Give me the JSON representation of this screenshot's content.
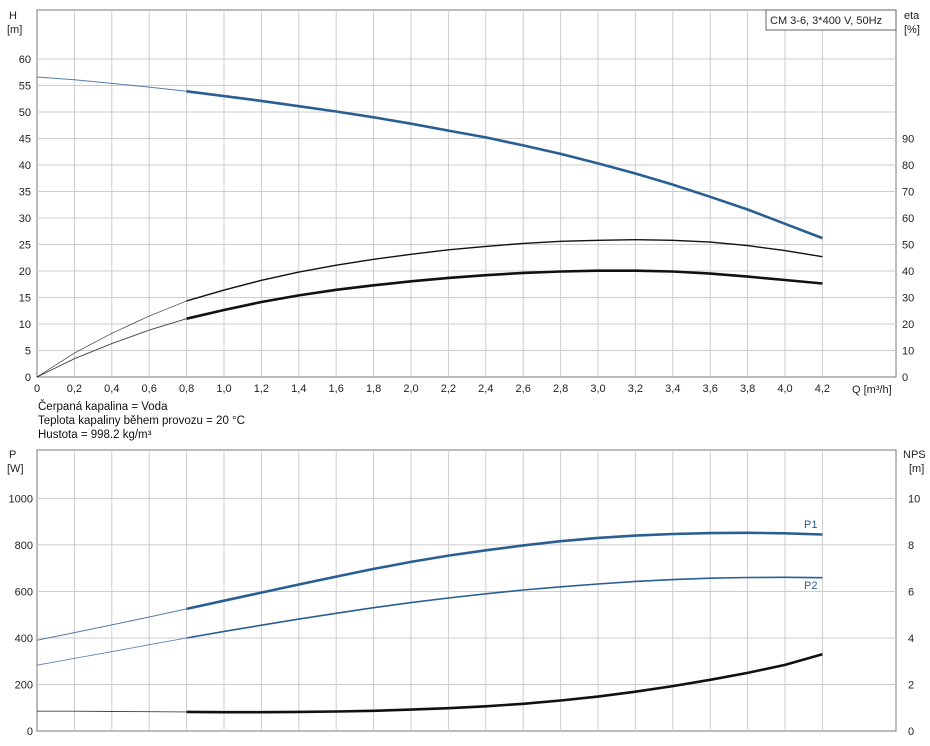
{
  "upper": {
    "title_box": "CM 3-6, 3*400 V, 50Hz",
    "left_axis": {
      "name": "H",
      "unit": "[m]"
    },
    "right_axis": {
      "name": "eta",
      "unit": "[%]"
    },
    "x_axis_label": "Q [m³/h]"
  },
  "info_lines": [
    "Čerpaná kapalina = Voda",
    "Teplota kapaliny během provozu = 20 °C",
    "Hustota = 998.2 kg/m³"
  ],
  "lower": {
    "left_axis": {
      "name": "P",
      "unit": "[W]"
    },
    "right_axis": {
      "name": "NPS",
      "unit": "[m]"
    },
    "series_labels": {
      "p1": "P1",
      "p2": "P2"
    }
  },
  "colors": {
    "blue": "#2a5f93",
    "blue_light": "#6f8fb8",
    "black": "#111111",
    "grid": "#cccccc",
    "axis": "#777777"
  },
  "chart_data": [
    {
      "type": "line",
      "title": "CM 3-6, 3*400 V, 50Hz",
      "xlabel": "Q [m³/h]",
      "ylabel": "H [m]",
      "y2label": "eta [%]",
      "xlim": [
        0,
        4.2
      ],
      "ylim": [
        0,
        60
      ],
      "y2lim": [
        0,
        90
      ],
      "x_ticks": [
        0,
        0.2,
        0.4,
        0.6,
        0.8,
        1.0,
        1.2,
        1.4,
        1.6,
        1.8,
        2.0,
        2.2,
        2.4,
        2.6,
        2.8,
        3.0,
        3.2,
        3.4,
        3.6,
        3.8,
        4.0,
        4.2
      ],
      "x_tick_labels": [
        "0",
        "0,2",
        "0,4",
        "0,6",
        "0,8",
        "1,0",
        "1,2",
        "1,4",
        "1,6",
        "1,8",
        "2,0",
        "2,2",
        "2,4",
        "2,6",
        "2,8",
        "3,0",
        "3,2",
        "3,4",
        "3,6",
        "3,8",
        "4,0",
        "4,2"
      ],
      "y_ticks": [
        0,
        5,
        10,
        15,
        20,
        25,
        30,
        35,
        40,
        45,
        50,
        55,
        60
      ],
      "y2_ticks": [
        0,
        10,
        20,
        30,
        40,
        50,
        60,
        70,
        80,
        90
      ],
      "grid": true,
      "series": [
        {
          "axis": "left",
          "style": "blue",
          "x": [
            0,
            0.2,
            0.4,
            0.6,
            0.8,
            1.0,
            1.2,
            1.4,
            1.6,
            1.8,
            2.0,
            2.2,
            2.4,
            2.6,
            2.8,
            3.0,
            3.2,
            3.4,
            3.6,
            3.8,
            4.0,
            4.2
          ],
          "y": [
            56.6,
            56.1,
            55.4,
            54.7,
            53.9,
            53.0,
            52.1,
            51.1,
            50.1,
            49.0,
            47.8,
            46.5,
            45.2,
            43.7,
            42.1,
            40.3,
            38.4,
            36.3,
            34.0,
            31.6,
            28.9,
            26.2
          ]
        },
        {
          "axis": "right",
          "style": "black-thin",
          "x": [
            0,
            0.2,
            0.4,
            0.6,
            0.8,
            1.0,
            1.2,
            1.4,
            1.6,
            1.8,
            2.0,
            2.2,
            2.4,
            2.6,
            2.8,
            3.0,
            3.2,
            3.4,
            3.6,
            3.8,
            4.0,
            4.2
          ],
          "y": [
            0,
            9.0,
            16.5,
            23.0,
            28.7,
            32.8,
            36.5,
            39.6,
            42.2,
            44.4,
            46.3,
            48.0,
            49.3,
            50.4,
            51.2,
            51.6,
            51.8,
            51.6,
            50.9,
            49.6,
            47.7,
            45.4
          ]
        },
        {
          "axis": "right",
          "style": "black-thick",
          "x": [
            0,
            0.2,
            0.4,
            0.6,
            0.8,
            1.0,
            1.2,
            1.4,
            1.6,
            1.8,
            2.0,
            2.2,
            2.4,
            2.6,
            2.8,
            3.0,
            3.2,
            3.4,
            3.6,
            3.8,
            4.0,
            4.2
          ],
          "y": [
            0,
            6.9,
            12.6,
            17.7,
            22.0,
            25.3,
            28.3,
            30.8,
            32.9,
            34.6,
            36.1,
            37.4,
            38.4,
            39.3,
            39.8,
            40.1,
            40.1,
            39.8,
            39.0,
            37.9,
            36.6,
            35.3
          ]
        }
      ]
    },
    {
      "type": "line",
      "xlim": [
        0,
        4.2
      ],
      "ylabel": "P [W]",
      "y2label": "NPS [m]",
      "ylim": [
        0,
        1100
      ],
      "y2lim": [
        0,
        11
      ],
      "y_ticks": [
        0,
        200,
        400,
        600,
        800,
        1000
      ],
      "y2_ticks": [
        0,
        2,
        4,
        6,
        8,
        10
      ],
      "grid": true,
      "series": [
        {
          "name": "P1",
          "axis": "left",
          "style": "blue",
          "x": [
            0,
            0.2,
            0.4,
            0.6,
            0.8,
            1.0,
            1.2,
            1.4,
            1.6,
            1.8,
            2.0,
            2.2,
            2.4,
            2.6,
            2.8,
            3.0,
            3.2,
            3.4,
            3.6,
            3.8,
            4.0,
            4.2
          ],
          "y": [
            390,
            423,
            456,
            490,
            525,
            560,
            595,
            630,
            664,
            697,
            727,
            754,
            777,
            798,
            816,
            830,
            840,
            847,
            851,
            852,
            850,
            845
          ]
        },
        {
          "name": "P2",
          "axis": "left",
          "style": "blue-light",
          "x": [
            0,
            0.2,
            0.4,
            0.6,
            0.8,
            1.0,
            1.2,
            1.4,
            1.6,
            1.8,
            2.0,
            2.2,
            2.4,
            2.6,
            2.8,
            3.0,
            3.2,
            3.4,
            3.6,
            3.8,
            4.0,
            4.2
          ],
          "y": [
            283,
            312,
            341,
            371,
            400,
            428,
            455,
            481,
            506,
            530,
            552,
            572,
            590,
            606,
            620,
            632,
            643,
            651,
            657,
            660,
            661,
            659
          ]
        },
        {
          "axis": "right",
          "style": "black-thick",
          "x": [
            0,
            0.2,
            0.4,
            0.6,
            0.8,
            1.0,
            1.2,
            1.4,
            1.6,
            1.8,
            2.0,
            2.2,
            2.4,
            2.6,
            2.8,
            3.0,
            3.2,
            3.4,
            3.6,
            3.8,
            4.0,
            4.2
          ],
          "y": [
            0.85,
            0.85,
            0.84,
            0.83,
            0.82,
            0.81,
            0.81,
            0.82,
            0.84,
            0.87,
            0.92,
            0.98,
            1.06,
            1.17,
            1.31,
            1.48,
            1.69,
            1.93,
            2.2,
            2.5,
            2.84,
            3.3
          ]
        }
      ]
    }
  ]
}
